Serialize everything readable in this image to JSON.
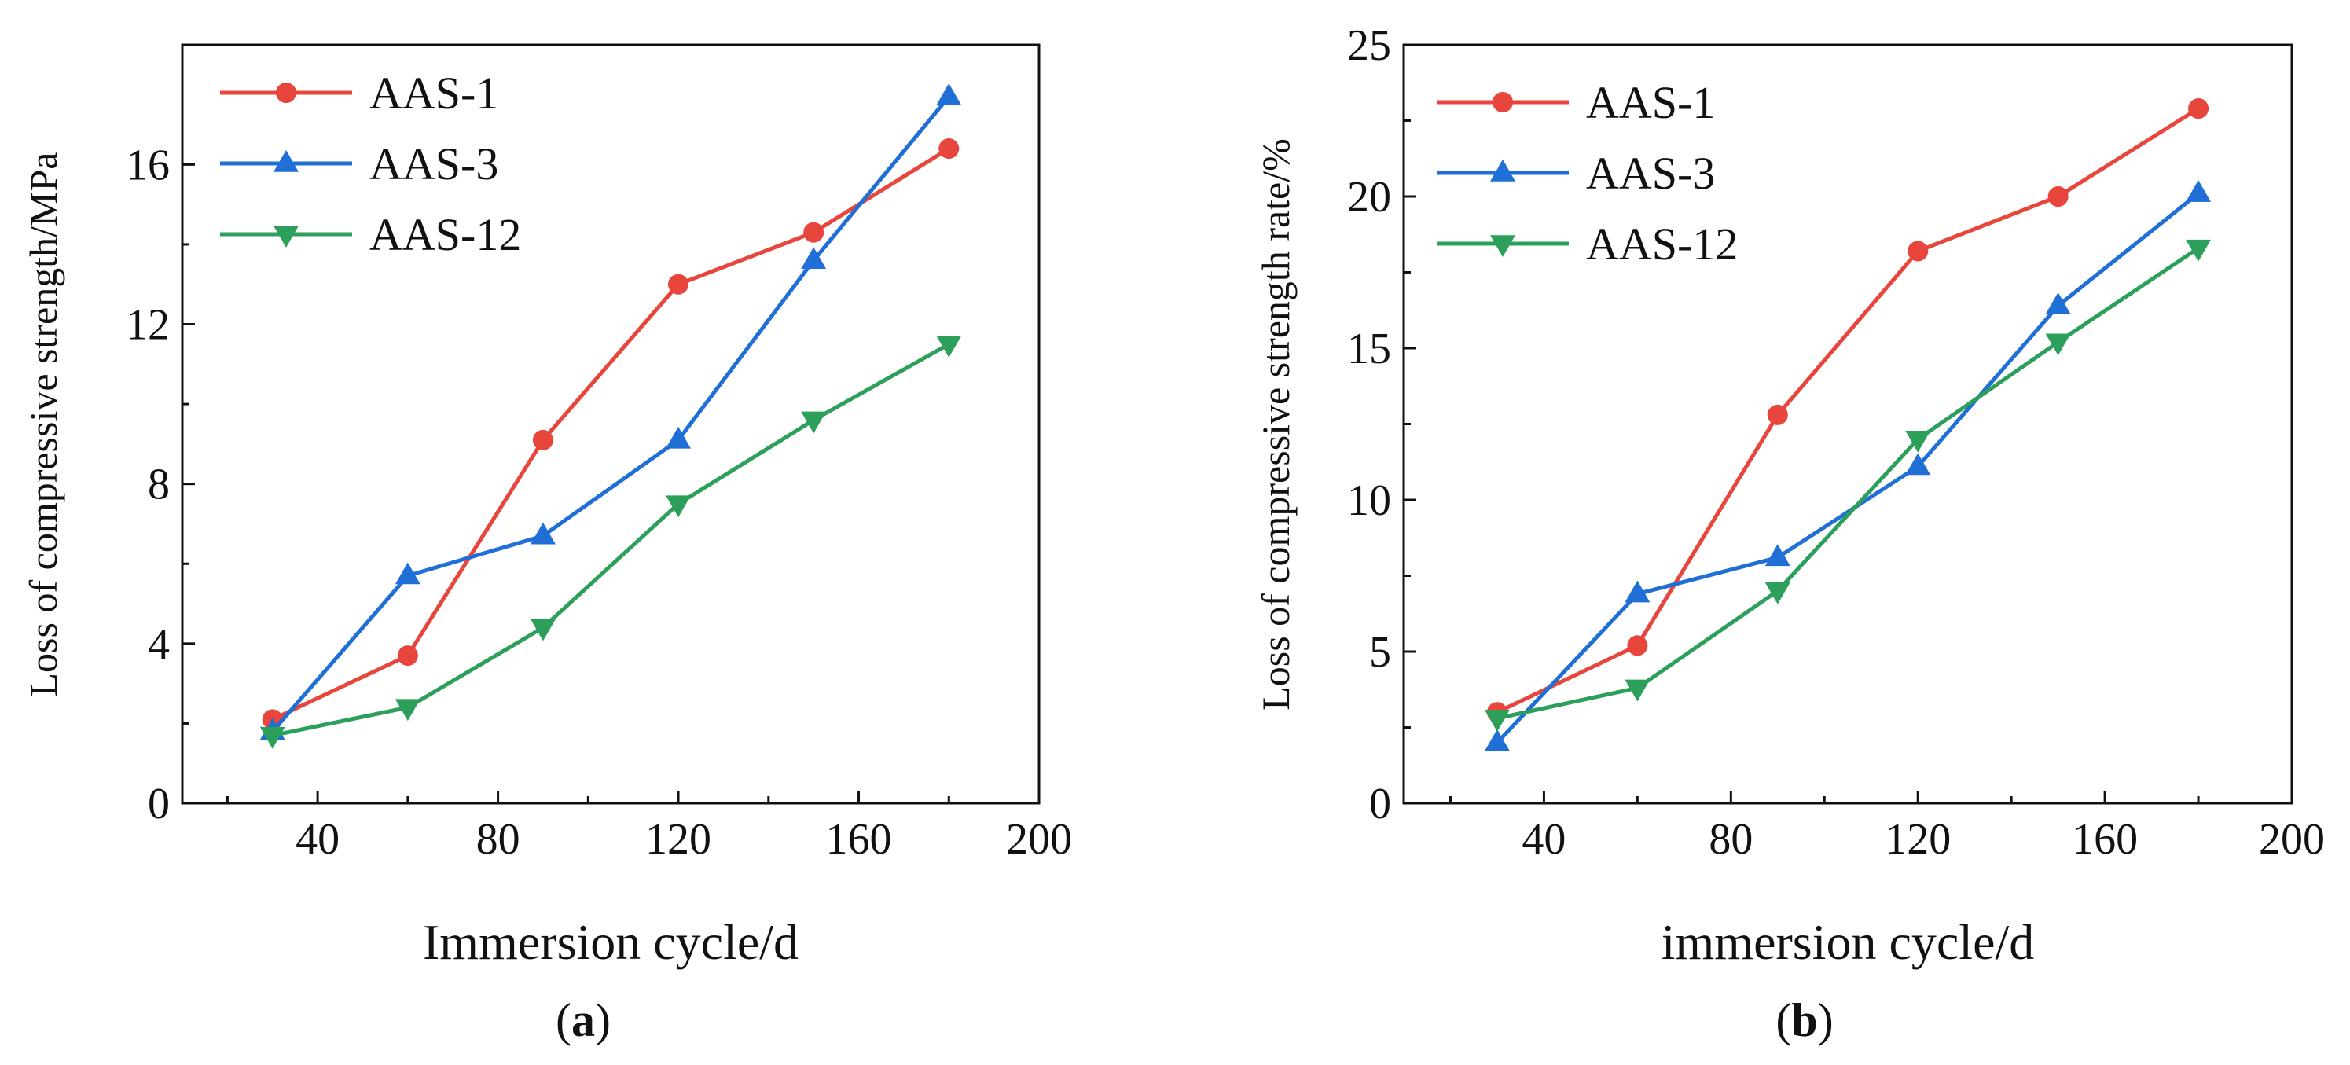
{
  "chart_data": [
    {
      "type": "line",
      "panel_label": "(a)",
      "panel_letter": "a",
      "title": "",
      "xlabel": "Immersion cycle/d",
      "ylabel": "Loss of compressive strength/MPa",
      "xlim": [
        10,
        200
      ],
      "ylim": [
        0,
        19
      ],
      "xticks": [
        40,
        80,
        120,
        160,
        200
      ],
      "yticks": [
        0,
        4,
        8,
        12,
        16
      ],
      "x": [
        30,
        60,
        90,
        120,
        150,
        180
      ],
      "grid": false,
      "legend_position": "top-left",
      "series": [
        {
          "name": "AAS-1",
          "marker": "circle",
          "color": "#e8453c",
          "values": [
            2.1,
            3.7,
            9.1,
            13.0,
            14.3,
            16.4
          ]
        },
        {
          "name": "AAS-3",
          "marker": "triangle-up",
          "color": "#1f6fd6",
          "values": [
            1.8,
            5.7,
            6.7,
            9.1,
            13.6,
            17.7
          ]
        },
        {
          "name": "AAS-12",
          "marker": "triangle-down",
          "color": "#2ca05a",
          "values": [
            1.7,
            2.4,
            4.4,
            7.5,
            9.6,
            11.5
          ]
        }
      ]
    },
    {
      "type": "line",
      "panel_label": "(b)",
      "panel_letter": "b",
      "title": "",
      "xlabel": "immersion cycle/d",
      "ylabel": "Loss of compressive strength rate/%",
      "xlim": [
        10,
        200
      ],
      "ylim": [
        0,
        25
      ],
      "xticks": [
        40,
        80,
        120,
        160,
        200
      ],
      "yticks": [
        0,
        5,
        10,
        15,
        20,
        25
      ],
      "x": [
        30,
        60,
        90,
        120,
        150,
        180
      ],
      "grid": false,
      "legend_position": "top-left",
      "series": [
        {
          "name": "AAS-1",
          "marker": "circle",
          "color": "#e8453c",
          "values": [
            3.0,
            5.2,
            12.8,
            18.2,
            20.0,
            22.9
          ]
        },
        {
          "name": "AAS-3",
          "marker": "triangle-up",
          "color": "#1f6fd6",
          "values": [
            2.0,
            6.9,
            8.1,
            11.1,
            16.4,
            20.1
          ]
        },
        {
          "name": "AAS-12",
          "marker": "triangle-down",
          "color": "#2ca05a",
          "values": [
            2.8,
            3.8,
            7.0,
            12.0,
            15.2,
            18.3
          ]
        }
      ]
    }
  ]
}
